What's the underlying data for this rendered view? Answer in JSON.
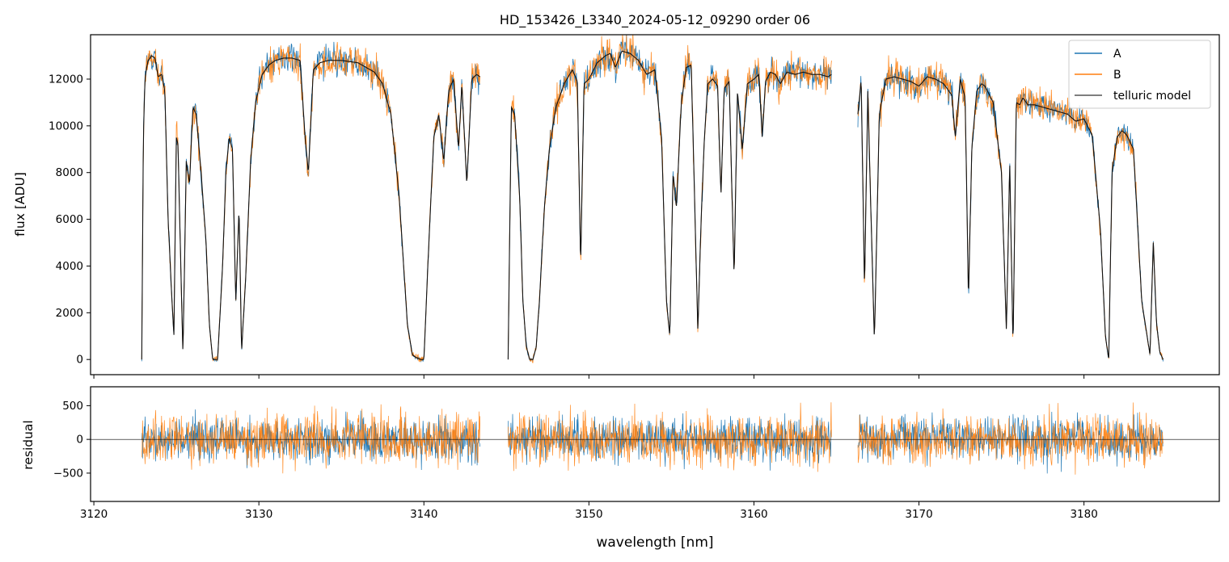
{
  "title": "HD_153426_L3340_2024-05-12_09290  order 06",
  "xlabel": "wavelength [nm]",
  "colors": {
    "A": "#1f77b4",
    "B": "#ff7f0e",
    "model": "#000000",
    "zero": "#000000"
  },
  "chart_data": [
    {
      "type": "line",
      "panel": "spectrum",
      "title": "HD_153426_L3340_2024-05-12_09290  order 06",
      "xlabel": "",
      "ylabel": "flux [ADU]",
      "xlim": [
        3119.8,
        3188.2
      ],
      "ylim": [
        -650,
        13900
      ],
      "x_ticks": [
        3120,
        3130,
        3140,
        3150,
        3160,
        3170,
        3180
      ],
      "y_ticks": [
        0,
        2000,
        4000,
        6000,
        8000,
        10000,
        12000
      ],
      "y_tick_labels": [
        "0",
        "2000",
        "4000",
        "6000",
        "8000",
        "10000",
        "12000"
      ],
      "legend": {
        "position": "top-right",
        "entries": [
          "A",
          "B",
          "telluric model"
        ]
      },
      "grid": false,
      "segments": [
        {
          "x": [
            3122.9,
            3123.0,
            3123.1,
            3123.2,
            3123.3,
            3123.5,
            3123.7,
            3123.9,
            3124.1,
            3124.3,
            3124.5,
            3124.7,
            3124.85,
            3125.0,
            3125.1,
            3125.3,
            3125.4,
            3125.6,
            3125.8,
            3126.0,
            3126.2,
            3126.5,
            3126.8,
            3127.0,
            3127.2,
            3127.5,
            3127.8,
            3128.0,
            3128.2,
            3128.4,
            3128.6,
            3128.8,
            3128.95,
            3129.2,
            3129.5,
            3129.8,
            3130.2,
            3130.6,
            3131.0,
            3131.5,
            3132.0,
            3132.5,
            3132.8,
            3133.0,
            3133.3,
            3133.7,
            3134.2,
            3135.0,
            3136.0,
            3137.0,
            3137.5,
            3138.0,
            3138.5,
            3139.0,
            3139.3,
            3139.5,
            3139.8,
            3140.0,
            3140.3,
            3140.6,
            3140.9,
            3141.2,
            3141.5,
            3141.8,
            3142.1,
            3142.3,
            3142.6,
            3142.9,
            3143.2,
            3143.4
          ],
          "y": [
            0,
            9500,
            12000,
            12500,
            12800,
            13000,
            12900,
            12100,
            12200,
            11500,
            6000,
            3000,
            1000,
            9500,
            9200,
            3000,
            200,
            8500,
            7500,
            10800,
            10500,
            8000,
            5000,
            1500,
            0,
            0,
            4000,
            8000,
            9500,
            9000,
            2500,
            6500,
            300,
            3500,
            8500,
            11000,
            12200,
            12600,
            12800,
            12900,
            12900,
            12800,
            9500,
            8000,
            12400,
            12700,
            12800,
            12800,
            12700,
            12300,
            11800,
            10500,
            7000,
            1500,
            200,
            100,
            0,
            0,
            5000,
            9500,
            10500,
            8500,
            11500,
            12000,
            9000,
            11800,
            7500,
            12000,
            12200,
            12100
          ]
        },
        {
          "x": [
            3145.1,
            3145.3,
            3145.5,
            3145.8,
            3146.0,
            3146.2,
            3146.4,
            3146.6,
            3146.8,
            3147.0,
            3147.3,
            3147.6,
            3148.0,
            3148.5,
            3149.0,
            3149.3,
            3149.5,
            3149.7,
            3150.0,
            3150.5,
            3151.0,
            3151.3,
            3151.6,
            3152.0,
            3152.5,
            3153.0,
            3153.5,
            3154.0,
            3154.4,
            3154.7,
            3154.9,
            3155.1,
            3155.3,
            3155.6,
            3155.9,
            3156.2,
            3156.4,
            3156.6,
            3156.8,
            3157.0,
            3157.2,
            3157.5,
            3157.8,
            3158.0,
            3158.2,
            3158.5,
            3158.8,
            3159.0,
            3159.3,
            3159.6,
            3160.0,
            3160.3,
            3160.5,
            3160.7,
            3161.0,
            3161.3,
            3161.6,
            3162.0,
            3162.5,
            3163.0,
            3163.5,
            3164.0,
            3164.5,
            3164.7
          ],
          "y": [
            0,
            10800,
            10500,
            7000,
            2500,
            600,
            0,
            0,
            500,
            2500,
            6500,
            9000,
            10800,
            11800,
            12400,
            11900,
            4000,
            11800,
            12000,
            12700,
            13000,
            13100,
            12500,
            13200,
            13100,
            12800,
            12200,
            12400,
            9500,
            2500,
            1000,
            8000,
            6500,
            11000,
            12500,
            12600,
            7000,
            1200,
            6000,
            9500,
            11800,
            12000,
            11700,
            7000,
            11600,
            11900,
            3500,
            11500,
            9000,
            11800,
            12000,
            12200,
            9500,
            11900,
            12300,
            12200,
            11800,
            12300,
            12200,
            12300,
            12200,
            12200,
            12100,
            12200
          ]
        },
        {
          "x": [
            3166.3,
            3166.5,
            3166.7,
            3166.9,
            3167.1,
            3167.3,
            3167.6,
            3168.0,
            3168.5,
            3169.0,
            3169.5,
            3170.0,
            3170.5,
            3171.0,
            3171.5,
            3172.0,
            3172.2,
            3172.5,
            3172.8,
            3173.0,
            3173.2,
            3173.5,
            3173.8,
            3174.0,
            3174.5,
            3175.0,
            3175.3,
            3175.5,
            3175.7,
            3175.9,
            3176.1,
            3176.3,
            3176.6,
            3177.0,
            3177.5,
            3178.0,
            3178.5,
            3179.0,
            3179.5,
            3180.0,
            3180.5,
            3181.0,
            3181.3,
            3181.5,
            3181.7,
            3182.0,
            3182.3,
            3182.6,
            3183.0,
            3183.5,
            3184.0,
            3184.2,
            3184.4,
            3184.6,
            3184.8
          ],
          "y": [
            10500,
            12000,
            3000,
            11500,
            6000,
            800,
            10500,
            12000,
            12100,
            12000,
            11900,
            11700,
            12100,
            12000,
            11800,
            11300,
            9500,
            12000,
            11200,
            2500,
            9000,
            11500,
            11800,
            11700,
            11000,
            8000,
            1200,
            8500,
            500,
            11000,
            10900,
            11200,
            10900,
            10900,
            10800,
            10700,
            10600,
            10500,
            10200,
            10300,
            9600,
            5500,
            1000,
            0,
            8000,
            9500,
            9800,
            9600,
            9000,
            2500,
            200,
            5000,
            1500,
            300,
            0
          ]
        }
      ],
      "series": [
        {
          "name": "A"
        },
        {
          "name": "B"
        },
        {
          "name": "telluric model"
        }
      ]
    },
    {
      "type": "line",
      "panel": "residual",
      "xlabel": "wavelength [nm]",
      "ylabel": "residual",
      "xlim": [
        3119.8,
        3188.2
      ],
      "ylim": [
        -920,
        780
      ],
      "x_ticks": [
        3120,
        3130,
        3140,
        3150,
        3160,
        3170,
        3180
      ],
      "x_tick_labels": [
        "3120",
        "3130",
        "3140",
        "3150",
        "3160",
        "3170",
        "3180"
      ],
      "y_ticks": [
        -500,
        0,
        500
      ],
      "y_tick_labels": [
        "−500",
        "0",
        "500"
      ],
      "zero_line": 0,
      "residual_ranges": [
        [
          3122.9,
          3143.4
        ],
        [
          3145.1,
          3164.7
        ],
        [
          3166.3,
          3184.8
        ]
      ],
      "series": [
        {
          "name": "A"
        },
        {
          "name": "B"
        }
      ]
    }
  ]
}
